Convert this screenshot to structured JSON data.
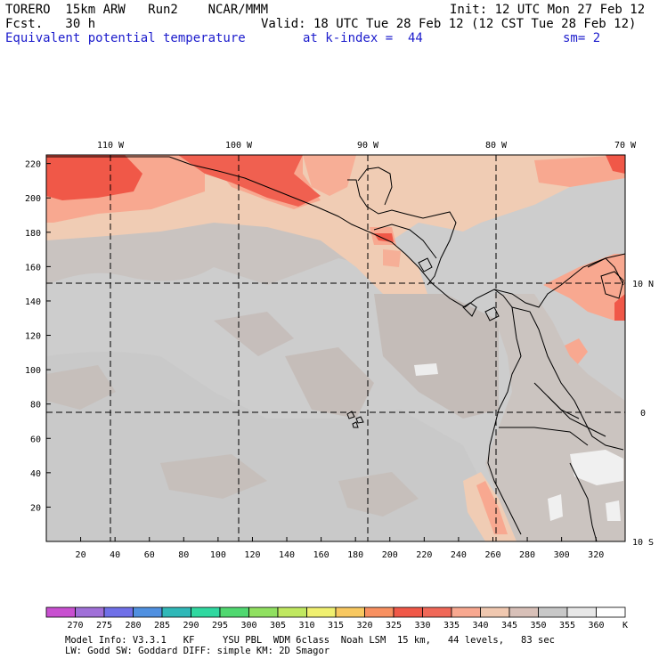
{
  "header": {
    "model": "TORERO  15km ARW   Run2    NCAR/MMM",
    "init": "Init: 12 UTC Mon 27 Feb 12",
    "fcst": "Fcst.   30 h",
    "valid": "Valid: 18 UTC Tue 28 Feb 12 (12 CST Tue 28 Feb 12)",
    "field": "Equivalent potential temperature",
    "level": "at k-index =  44",
    "smoothing": "sm= 2"
  },
  "map": {
    "lon_labels": [
      "110 W",
      "100 W",
      "90 W",
      "80 W",
      "70 W"
    ],
    "lat_labels": [
      "10 N",
      "0",
      "10 S"
    ],
    "x_ticks": [
      "20",
      "40",
      "60",
      "80",
      "100",
      "120",
      "140",
      "160",
      "180",
      "200",
      "220",
      "240",
      "260",
      "280",
      "300",
      "320"
    ],
    "y_ticks": [
      "220",
      "200",
      "180",
      "160",
      "140",
      "120",
      "100",
      "80",
      "60",
      "40",
      "20"
    ]
  },
  "colorbar": {
    "unit": "K",
    "labels": [
      "270",
      "275",
      "280",
      "285",
      "290",
      "295",
      "300",
      "305",
      "310",
      "315",
      "320",
      "325",
      "330",
      "335",
      "340",
      "345",
      "350",
      "355",
      "360"
    ],
    "colors": [
      "#c850d0",
      "#a070d8",
      "#7070e8",
      "#5090e0",
      "#30b8b8",
      "#30d8a0",
      "#50d870",
      "#90e060",
      "#c0e860",
      "#f0f070",
      "#f8c860",
      "#f89060",
      "#f05848",
      "#f06858",
      "#f8a890",
      "#f0c8b0",
      "#d8c0b8",
      "#c8c8c8",
      "#e8e8e8",
      "#ffffff"
    ]
  },
  "footer": {
    "line1": "Model Info: V3.3.1   KF     YSU PBL  WDM 6class  Noah LSM  15 km,   44 levels,   83 sec",
    "line2": "LW: Godd SW: Goddard DIFF: simple KM: 2D Smagor"
  }
}
